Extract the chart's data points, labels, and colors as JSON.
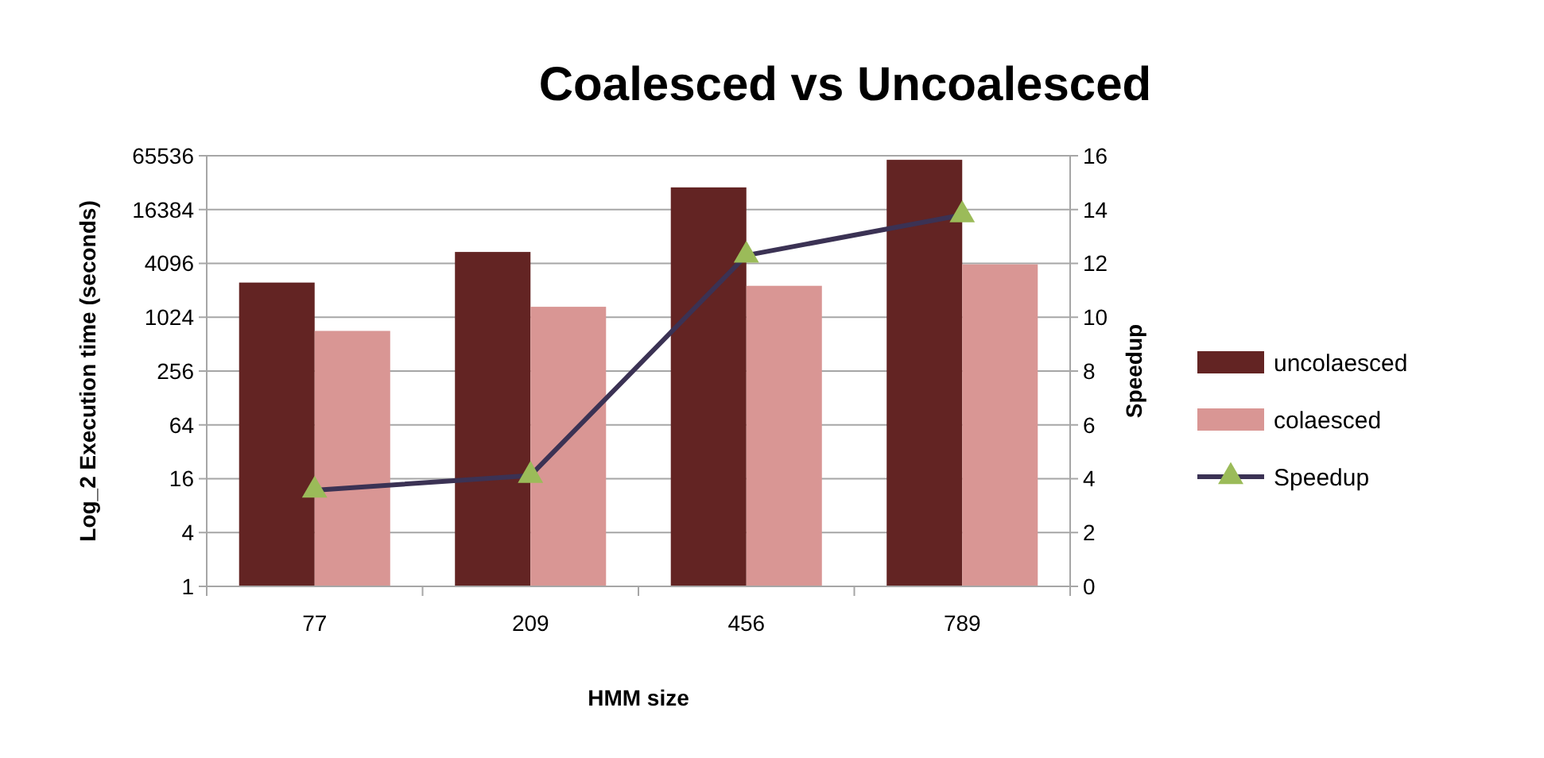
{
  "chart_data": {
    "type": "bar",
    "title": "Coalesced vs Uncoalesced",
    "xlabel": "HMM size",
    "ylabel": "Log_2 Execution time  (seconds)",
    "y2label": "Speedup",
    "categories": [
      "77",
      "209",
      "456",
      "789"
    ],
    "series": [
      {
        "name": "uncolaesced",
        "color": "#632423",
        "values": [
          2500,
          5500,
          29000,
          59000
        ]
      },
      {
        "name": "colaesced",
        "color": "#d99694",
        "values": [
          720,
          1340,
          2300,
          4000
        ]
      },
      {
        "name": "Speedup",
        "type": "line",
        "axis": "y2",
        "color": "#3b3254",
        "marker": "triangle",
        "values": [
          3.57,
          4.12,
          12.3,
          13.8
        ]
      }
    ],
    "log": "y",
    "ylim": [
      1,
      65536
    ],
    "yticks": [
      1,
      4,
      16,
      64,
      256,
      1024,
      4096,
      16384,
      65536
    ],
    "y2lim": [
      0,
      16
    ],
    "y2ticks": [
      0,
      2,
      4,
      6,
      8,
      10,
      12,
      14,
      16
    ],
    "grid": "y",
    "legend": "right"
  }
}
